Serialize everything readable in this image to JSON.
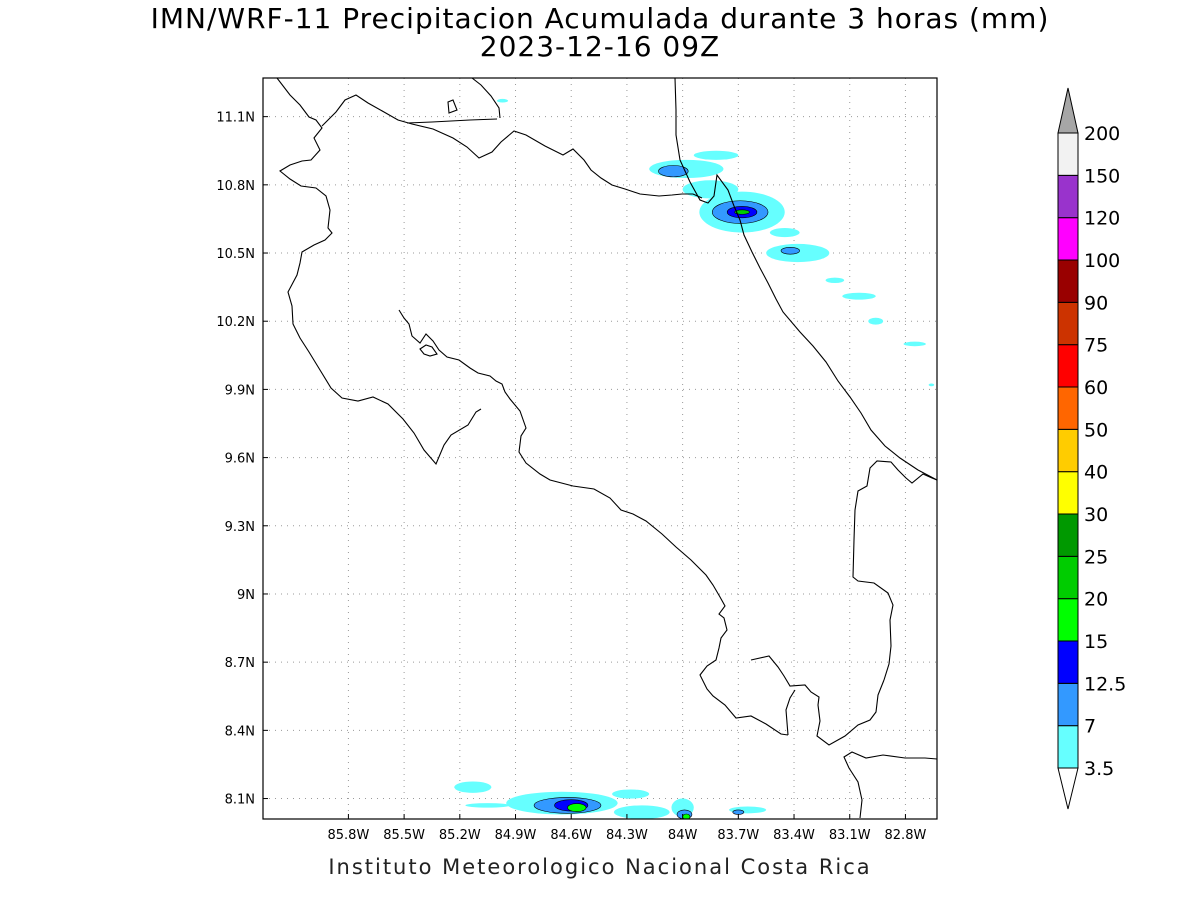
{
  "title": {
    "line1": "IMN/WRF-11 Precipitacion Acumulada durante 3 horas (mm)",
    "line2": "2023-12-16 09Z"
  },
  "footer": "Instituto Meteorologico Nacional Costa Rica",
  "map": {
    "lon_range": [
      -86.26,
      -82.63
    ],
    "lat_range": [
      8.01,
      11.27
    ],
    "lon_ticks": [
      {
        "value": -85.8,
        "label": "85.8W"
      },
      {
        "value": -85.5,
        "label": "85.5W"
      },
      {
        "value": -85.2,
        "label": "85.2W"
      },
      {
        "value": -84.9,
        "label": "84.9W"
      },
      {
        "value": -84.6,
        "label": "84.6W"
      },
      {
        "value": -84.3,
        "label": "84.3W"
      },
      {
        "value": -84.0,
        "label": "84W"
      },
      {
        "value": -83.7,
        "label": "83.7W"
      },
      {
        "value": -83.4,
        "label": "83.4W"
      },
      {
        "value": -83.1,
        "label": "83.1W"
      },
      {
        "value": -82.8,
        "label": "82.8W"
      }
    ],
    "lat_ticks": [
      {
        "value": 11.1,
        "label": "11.1N"
      },
      {
        "value": 10.8,
        "label": "10.8N"
      },
      {
        "value": 10.5,
        "label": "10.5N"
      },
      {
        "value": 10.2,
        "label": "10.2N"
      },
      {
        "value": 9.9,
        "label": "9.9N"
      },
      {
        "value": 9.6,
        "label": "9.6N"
      },
      {
        "value": 9.3,
        "label": "9.3N"
      },
      {
        "value": 9.0,
        "label": "9N"
      },
      {
        "value": 8.7,
        "label": "8.7N"
      },
      {
        "value": 8.4,
        "label": "8.4N"
      },
      {
        "value": 8.1,
        "label": "8.1N"
      }
    ],
    "grid": true,
    "precip_cells": [
      {
        "lon": -83.82,
        "lat": 10.93,
        "rx": 0.12,
        "ry": 0.02,
        "level": 0
      },
      {
        "lon": -83.98,
        "lat": 10.87,
        "rx": 0.2,
        "ry": 0.04,
        "level": 0
      },
      {
        "lon": -84.05,
        "lat": 10.86,
        "rx": 0.08,
        "ry": 0.025,
        "level": 1
      },
      {
        "lon": -83.85,
        "lat": 10.78,
        "rx": 0.15,
        "ry": 0.04,
        "level": 0
      },
      {
        "lon": -83.68,
        "lat": 10.68,
        "rx": 0.23,
        "ry": 0.09,
        "level": 0
      },
      {
        "lon": -83.69,
        "lat": 10.68,
        "rx": 0.15,
        "ry": 0.05,
        "level": 1
      },
      {
        "lon": -83.68,
        "lat": 10.68,
        "rx": 0.08,
        "ry": 0.025,
        "level": 2
      },
      {
        "lon": -83.68,
        "lat": 10.68,
        "rx": 0.04,
        "ry": 0.01,
        "level": 4
      },
      {
        "lon": -83.45,
        "lat": 10.59,
        "rx": 0.08,
        "ry": 0.02,
        "level": 0
      },
      {
        "lon": -83.38,
        "lat": 10.5,
        "rx": 0.17,
        "ry": 0.04,
        "level": 0
      },
      {
        "lon": -83.42,
        "lat": 10.51,
        "rx": 0.05,
        "ry": 0.015,
        "level": 1
      },
      {
        "lon": -83.18,
        "lat": 10.38,
        "rx": 0.05,
        "ry": 0.012,
        "level": 0
      },
      {
        "lon": -83.05,
        "lat": 10.31,
        "rx": 0.09,
        "ry": 0.015,
        "level": 0
      },
      {
        "lon": -82.96,
        "lat": 10.2,
        "rx": 0.04,
        "ry": 0.015,
        "level": 0
      },
      {
        "lon": -82.75,
        "lat": 10.1,
        "rx": 0.06,
        "ry": 0.01,
        "level": 0
      },
      {
        "lon": -82.66,
        "lat": 9.92,
        "rx": 0.015,
        "ry": 0.006,
        "level": 0
      },
      {
        "lon": -84.97,
        "lat": 11.17,
        "rx": 0.03,
        "ry": 0.008,
        "level": 0
      },
      {
        "lon": -85.13,
        "lat": 8.15,
        "rx": 0.1,
        "ry": 0.025,
        "level": 0
      },
      {
        "lon": -85.05,
        "lat": 8.07,
        "rx": 0.12,
        "ry": 0.01,
        "level": 0
      },
      {
        "lon": -84.65,
        "lat": 8.08,
        "rx": 0.3,
        "ry": 0.05,
        "level": 0
      },
      {
        "lon": -84.62,
        "lat": 8.07,
        "rx": 0.18,
        "ry": 0.035,
        "level": 1
      },
      {
        "lon": -84.6,
        "lat": 8.07,
        "rx": 0.09,
        "ry": 0.025,
        "level": 2
      },
      {
        "lon": -84.57,
        "lat": 8.06,
        "rx": 0.05,
        "ry": 0.018,
        "level": 3
      },
      {
        "lon": -84.28,
        "lat": 8.12,
        "rx": 0.1,
        "ry": 0.02,
        "level": 0
      },
      {
        "lon": -84.22,
        "lat": 8.04,
        "rx": 0.15,
        "ry": 0.03,
        "level": 0
      },
      {
        "lon": -84.0,
        "lat": 8.06,
        "rx": 0.06,
        "ry": 0.04,
        "level": 0
      },
      {
        "lon": -83.99,
        "lat": 8.03,
        "rx": 0.04,
        "ry": 0.02,
        "level": 1
      },
      {
        "lon": -83.98,
        "lat": 8.02,
        "rx": 0.02,
        "ry": 0.012,
        "level": 3
      },
      {
        "lon": -83.65,
        "lat": 8.05,
        "rx": 0.1,
        "ry": 0.015,
        "level": 0
      },
      {
        "lon": -83.7,
        "lat": 8.04,
        "rx": 0.03,
        "ry": 0.01,
        "level": 1
      }
    ]
  },
  "colorbar": {
    "levels": [
      "3.5",
      "7",
      "12.5",
      "15",
      "20",
      "25",
      "30",
      "40",
      "50",
      "60",
      "75",
      "90",
      "100",
      "120",
      "150",
      "200"
    ],
    "colors": [
      "#66ffff",
      "#3399ff",
      "#0000ff",
      "#00ff00",
      "#00cc00",
      "#009900",
      "#ffff00",
      "#ffcc00",
      "#ff6600",
      "#ff0000",
      "#cc3300",
      "#990000",
      "#ff00ff",
      "#9933cc",
      "#f2f2f2"
    ],
    "upper_arrow_color": "#a6a6a6",
    "lower_arrow_color": "#ffffff"
  }
}
